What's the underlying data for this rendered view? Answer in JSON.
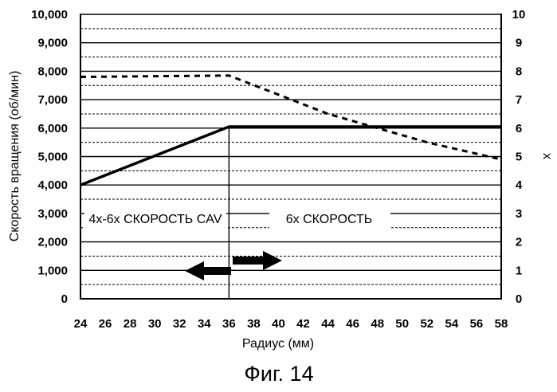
{
  "chart_data": {
    "type": "line",
    "xlabel": "Радиус (мм)",
    "ylabel": "Скорость вращения (об/мин)",
    "y2label": "x",
    "xlim": [
      24,
      58
    ],
    "ylim": [
      0,
      10000
    ],
    "y2lim": [
      0,
      10
    ],
    "x_ticks": [
      "24",
      "26",
      "28",
      "30",
      "32",
      "34",
      "36",
      "38",
      "40",
      "42",
      "44",
      "46",
      "48",
      "50",
      "52",
      "54",
      "56",
      "58"
    ],
    "y_ticks": [
      "0",
      "1,000",
      "2,000",
      "3,000",
      "4,000",
      "5,000",
      "6,000",
      "7,000",
      "8,000",
      "9,000",
      "10,000"
    ],
    "y2_ticks": [
      "0",
      "1",
      "2",
      "3",
      "4",
      "5",
      "6",
      "7",
      "8",
      "9",
      "10"
    ],
    "grid": true,
    "series": [
      {
        "style": "solid",
        "axis": "right",
        "x": [
          24,
          36,
          36,
          58
        ],
        "y": [
          4.0,
          6.05,
          6.05,
          6.05
        ]
      },
      {
        "style": "dashed",
        "axis": "left",
        "x": [
          24,
          36,
          44,
          52,
          58
        ],
        "y": [
          7800,
          7850,
          6500,
          5500,
          4900
        ]
      }
    ],
    "boundary_x": 36,
    "annotations": {
      "left_region": "4x-6x СКОРОСТЬ CAV",
      "right_region": "6x СКОРОСТЬ"
    }
  },
  "caption": "Фиг. 14"
}
